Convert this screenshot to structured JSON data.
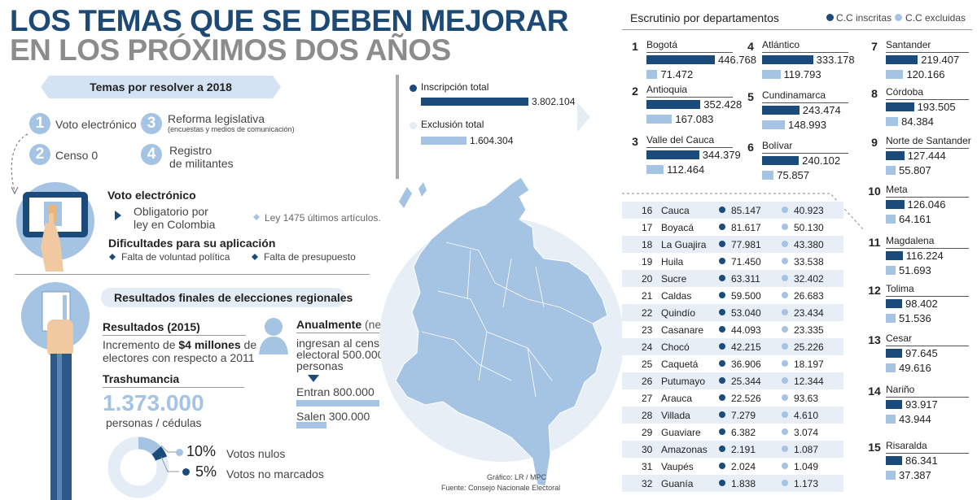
{
  "title": {
    "line1": "LOS TEMAS QUE SE DEBEN MEJORAR",
    "line2": "EN LOS PRÓXIMOS DOS AÑOS"
  },
  "topics": {
    "header": "Temas por resolver a 2018",
    "items": [
      {
        "num": "1",
        "label": "Voto electrónico"
      },
      {
        "num": "2",
        "label": "Censo 0"
      },
      {
        "num": "3",
        "label": "Reforma legislativa",
        "sub": "(encuestas y medios de comunicación)"
      },
      {
        "num": "4",
        "label": "Registro",
        "label2": "de militantes"
      }
    ]
  },
  "voto": {
    "title": "Voto electrónico",
    "point1a": "Obligatorio por",
    "point1b": "ley en Colombia",
    "point2": "Ley 1475 últimos artículos.",
    "difficulties_title": "Dificultades para su aplicación",
    "diff1": "Falta de voluntad política",
    "diff2": "Falta de presupuesto"
  },
  "resultados": {
    "header": "Resultados finales de elecciones regionales",
    "r2015_title": "Resultados (2015)",
    "r2015_l1a": "Incremento de ",
    "r2015_l1b": "$4 millones",
    "r2015_l1c": " de",
    "r2015_l2": "electores con respecto a 2011",
    "trash_title": "Trashumancia",
    "trash_value": "1.373.000",
    "trash_unit": "personas / cédulas",
    "annual_title": "Anualmente",
    "annual_sub": "(neto)",
    "annual_l1": "ingresan al censo",
    "annual_l2": "electoral 500.000",
    "annual_l3": "personas",
    "entran": "Entran 800.000",
    "salen": "Salen 300.000",
    "nulos_pct": "10%",
    "nulos_label": "Votos nulos",
    "nomarc_pct": "5%",
    "nomarc_label": "Votos no marcados"
  },
  "totals": {
    "insc_label": "Inscripción total",
    "insc_value": "3.802.104",
    "excl_label": "Exclusión total",
    "excl_value": "1.604.304"
  },
  "credits": {
    "grafico": "Gráfico: LR / MPC",
    "fuente": "Fuente: Consejo Nacionale Electoral"
  },
  "escrutinio": {
    "title": "Escrutinio por departamentos",
    "legend_insc": "C.C inscritas",
    "legend_excl": "C.C excluidas"
  },
  "colors": {
    "dark": "#1b4b7a",
    "light": "#a5c3e2",
    "title": "#1d4a74"
  },
  "chart_data": {
    "type": "bar",
    "title": "Escrutinio por departamentos",
    "series_names": [
      "C.C inscritas",
      "C.C excluidas"
    ],
    "top15": [
      {
        "rank": "1",
        "name": "Bogotá",
        "insc": "446.768",
        "excl": "71.472"
      },
      {
        "rank": "2",
        "name": "Antioquia",
        "insc": "352.428",
        "excl": "167.083"
      },
      {
        "rank": "3",
        "name": "Valle del Cauca",
        "insc": "344.379",
        "excl": "112.464"
      },
      {
        "rank": "4",
        "name": "Atlántico",
        "insc": "333.178",
        "excl": "119.793"
      },
      {
        "rank": "5",
        "name": "Cundinamarca",
        "insc": "243.474",
        "excl": "148.993"
      },
      {
        "rank": "6",
        "name": "Bolívar",
        "insc": "240.102",
        "excl": "75.857"
      },
      {
        "rank": "7",
        "name": "Santander",
        "insc": "219.407",
        "excl": "120.166"
      },
      {
        "rank": "8",
        "name": "Córdoba",
        "insc": "193.505",
        "excl": "84.384"
      },
      {
        "rank": "9",
        "name": "Norte de Santander",
        "insc": "127.444",
        "excl": "55.807"
      },
      {
        "rank": "10",
        "name": "Meta",
        "insc": "126.046",
        "excl": "64.161"
      },
      {
        "rank": "11",
        "name": "Magdalena",
        "insc": "116.224",
        "excl": "51.693"
      },
      {
        "rank": "12",
        "name": "Tolima",
        "insc": "98.402",
        "excl": "51.536"
      },
      {
        "rank": "13",
        "name": "Cesar",
        "insc": "97.645",
        "excl": "49.616"
      },
      {
        "rank": "14",
        "name": "Nariño",
        "insc": "93.917",
        "excl": "43.944"
      },
      {
        "rank": "15",
        "name": "Risaralda",
        "insc": "86.341",
        "excl": "37.387"
      }
    ],
    "table": [
      {
        "rank": "16",
        "name": "Cauca",
        "insc": "85.147",
        "excl": "40.923"
      },
      {
        "rank": "17",
        "name": "Boyacá",
        "insc": "81.617",
        "excl": "50.130"
      },
      {
        "rank": "18",
        "name": "La Guajira",
        "insc": "77.981",
        "excl": "43.380"
      },
      {
        "rank": "19",
        "name": "Huila",
        "insc": "71.450",
        "excl": "33.538"
      },
      {
        "rank": "20",
        "name": "Sucre",
        "insc": "63.311",
        "excl": "32.402"
      },
      {
        "rank": "21",
        "name": "Caldas",
        "insc": "59.500",
        "excl": "26.683"
      },
      {
        "rank": "22",
        "name": "Quindío",
        "insc": "53.040",
        "excl": "23.434"
      },
      {
        "rank": "23",
        "name": "Casanare",
        "insc": "44.093",
        "excl": "23.335"
      },
      {
        "rank": "24",
        "name": "Chocó",
        "insc": "42.215",
        "excl": "25.226"
      },
      {
        "rank": "25",
        "name": "Caquetá",
        "insc": "36.906",
        "excl": "18.197"
      },
      {
        "rank": "26",
        "name": "Putumayo",
        "insc": "25.344",
        "excl": "12.344"
      },
      {
        "rank": "27",
        "name": "Arauca",
        "insc": "22.526",
        "excl": "93.63"
      },
      {
        "rank": "28",
        "name": "Villada",
        "insc": "7.279",
        "excl": "4.610"
      },
      {
        "rank": "29",
        "name": "Guaviare",
        "insc": "6.382",
        "excl": "3.074"
      },
      {
        "rank": "30",
        "name": "Amazonas",
        "insc": "2.191",
        "excl": "1.087"
      },
      {
        "rank": "31",
        "name": "Vaupés",
        "insc": "2.024",
        "excl": "1.049"
      },
      {
        "rank": "32",
        "name": "Guanía",
        "insc": "1.838",
        "excl": "1.173"
      }
    ]
  }
}
